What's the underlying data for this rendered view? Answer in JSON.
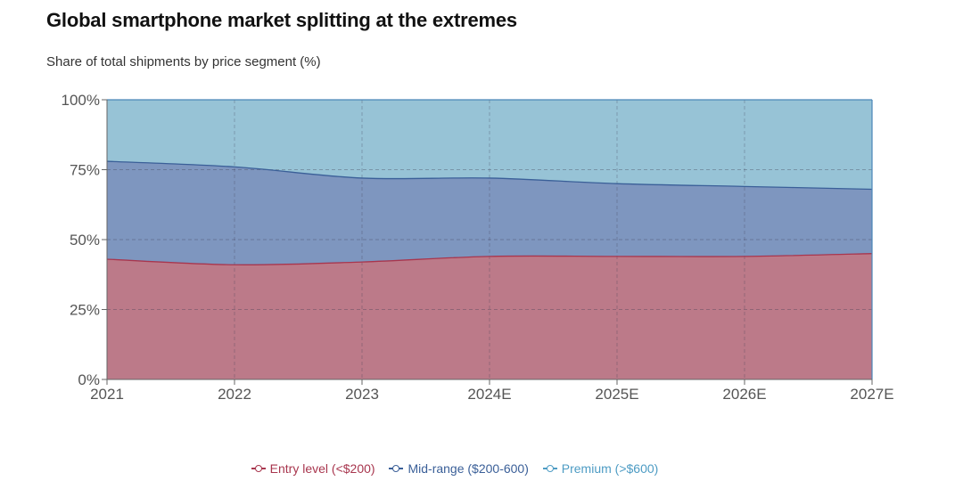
{
  "header": {
    "title": "Global smartphone market splitting at the extremes",
    "subtitle": "Share of total shipments by price segment (%)"
  },
  "chart_data": {
    "type": "area",
    "stacked": true,
    "title": "Global smartphone market splitting at the extremes",
    "subtitle": "Share of total shipments by price segment (%)",
    "x": [
      "2021",
      "2022",
      "2023",
      "2024E",
      "2025E",
      "2026E",
      "2027E"
    ],
    "y_ticks": [
      0,
      25,
      50,
      75,
      100
    ],
    "y_tick_labels": [
      "0%",
      "25%",
      "50%",
      "75%",
      "100%"
    ],
    "ylim": [
      0,
      100
    ],
    "grid": true,
    "legend_position": "bottom",
    "series": [
      {
        "name": "Entry level (<$200)",
        "color": "#a8364e",
        "fill": "#bc7a89",
        "values": [
          43,
          41,
          42,
          44,
          44,
          44,
          45
        ]
      },
      {
        "name": "Mid-range ($200-600)",
        "color": "#3a5f98",
        "fill": "#7e96bf",
        "values": [
          35,
          35,
          30,
          28,
          26,
          25,
          23
        ]
      },
      {
        "name": "Premium (>$600)",
        "color": "#4e9cc4",
        "fill": "#97c3d6",
        "values": [
          22,
          24,
          28,
          28,
          30,
          31,
          32
        ]
      }
    ]
  }
}
